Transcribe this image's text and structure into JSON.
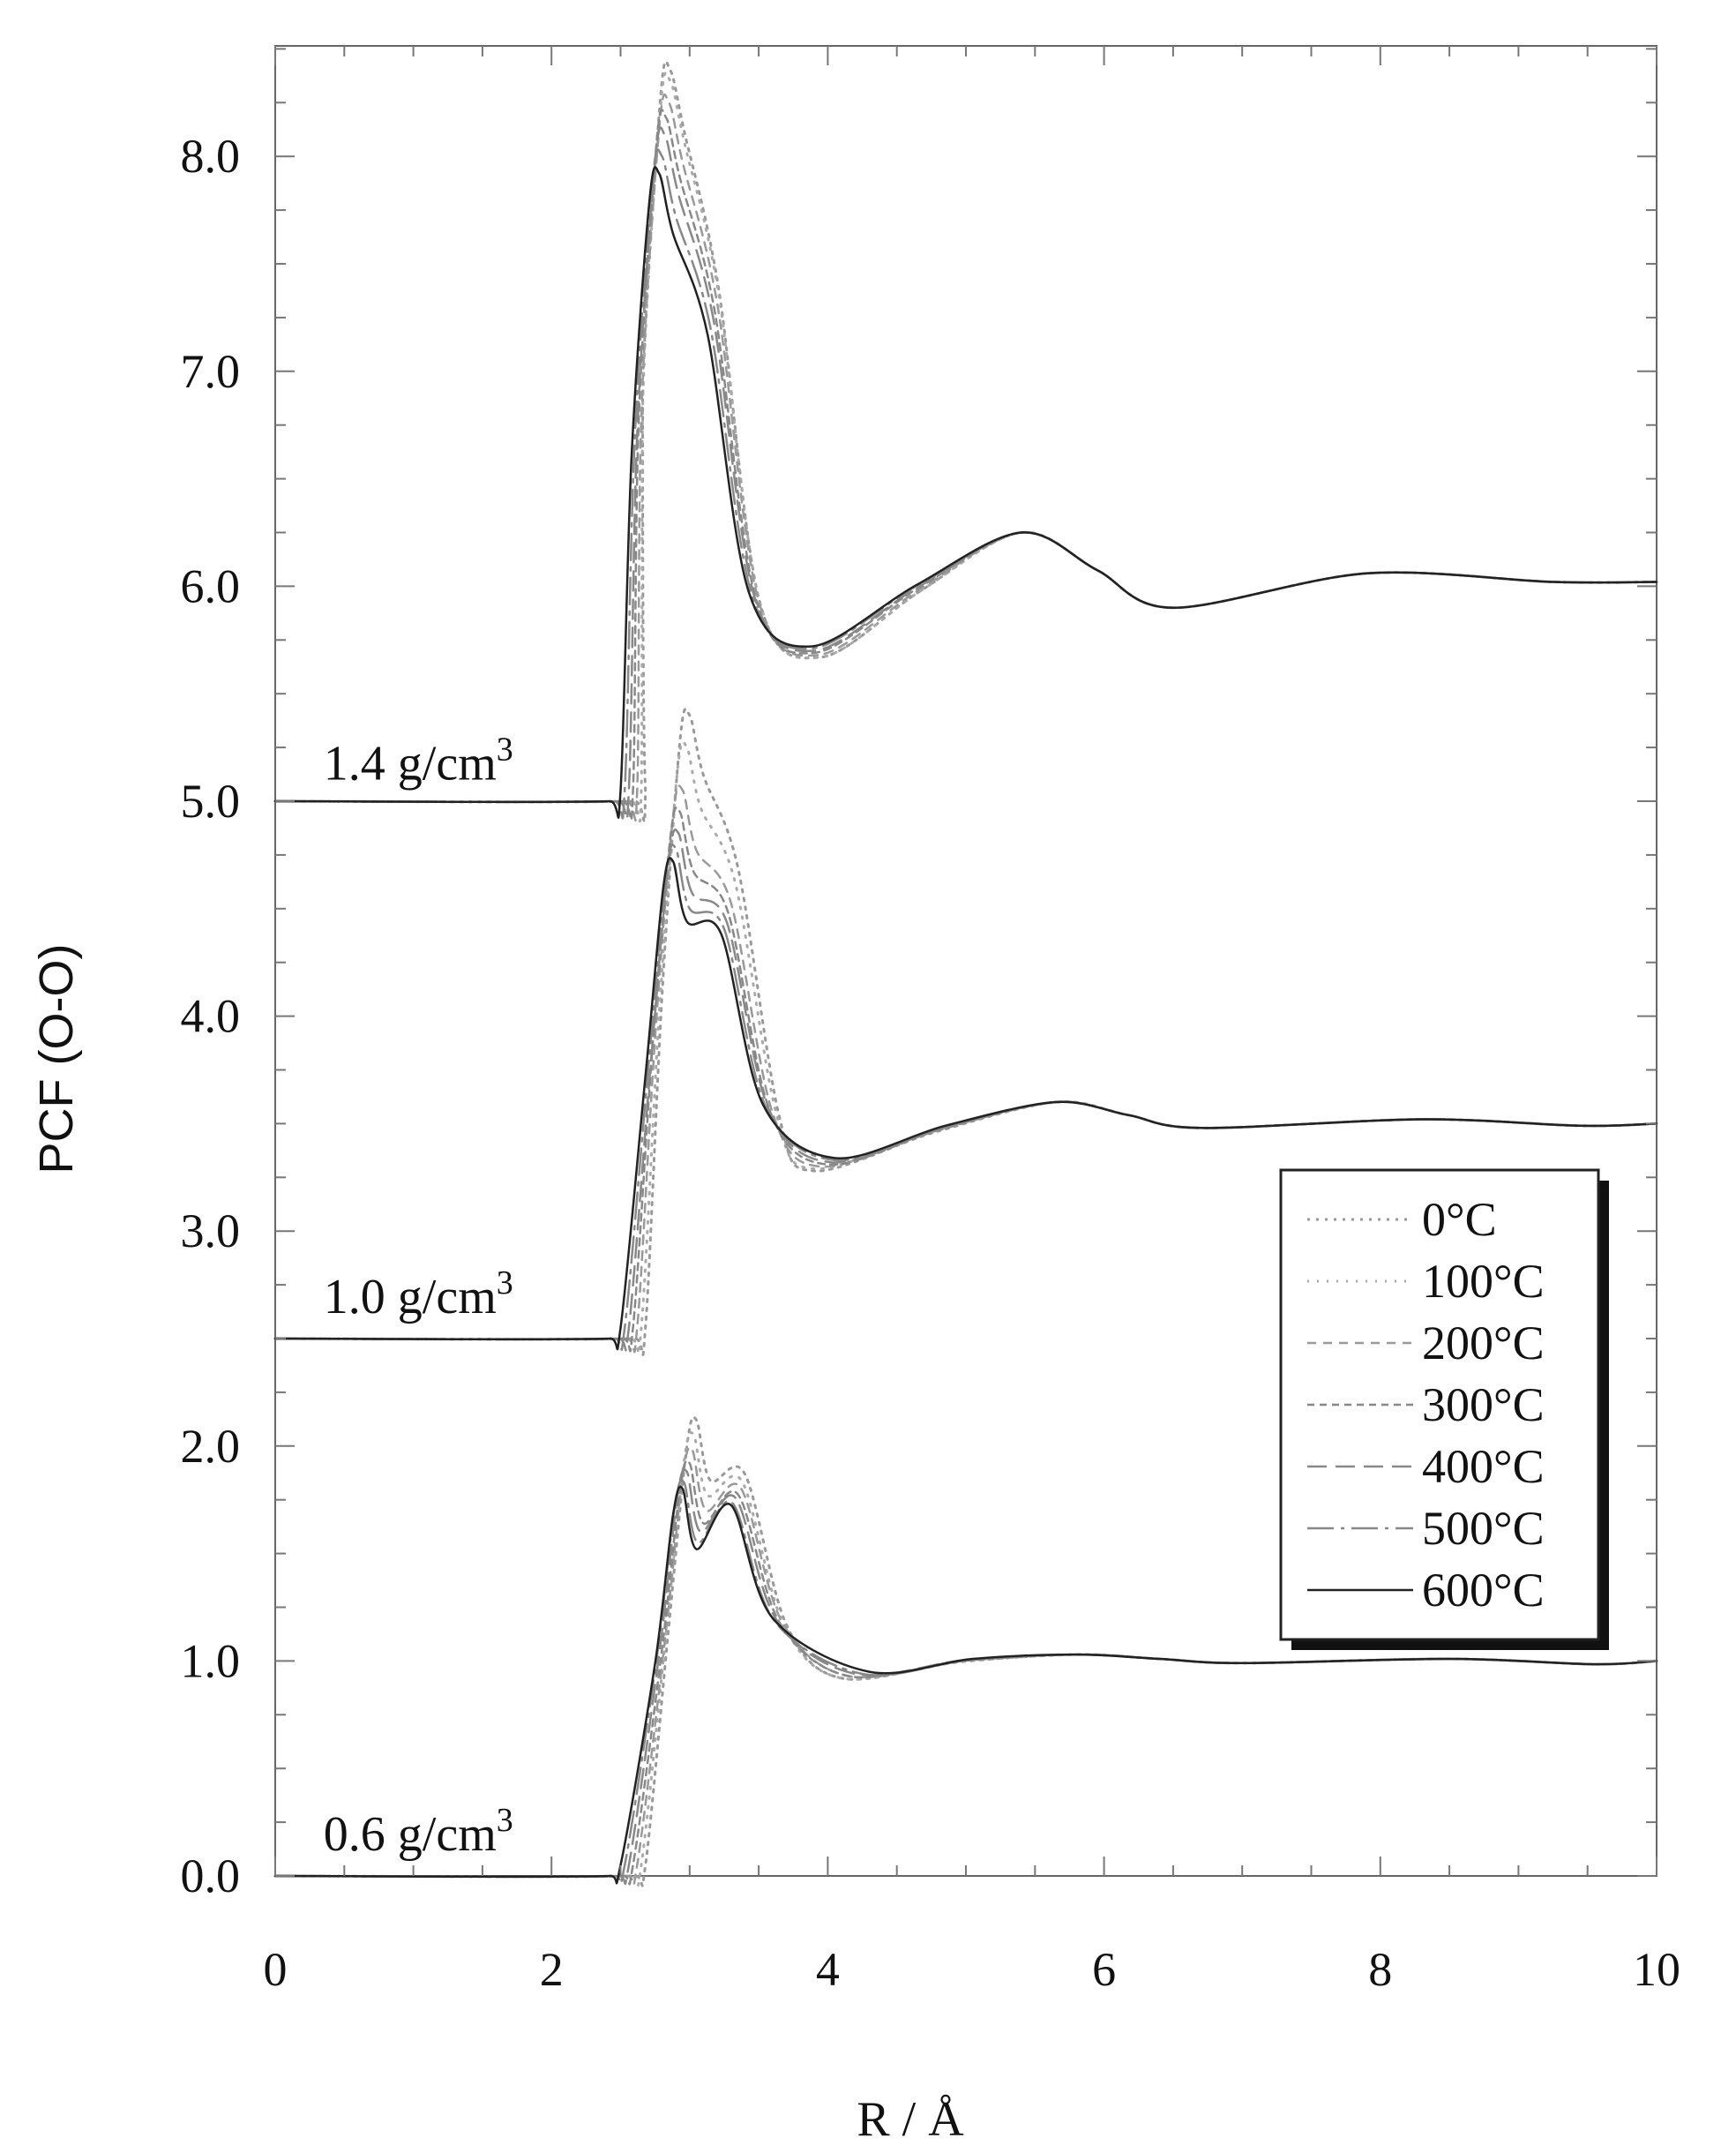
{
  "chart_data": {
    "type": "line",
    "title": "",
    "xlabel": "R / Å",
    "ylabel": "PCF (O-O)",
    "xlim": [
      0,
      10
    ],
    "ylim": [
      0,
      8.5
    ],
    "x_ticks": [
      "0",
      "2",
      "4",
      "6",
      "8",
      "10"
    ],
    "y_ticks": [
      "0.0",
      "1.0",
      "2.0",
      "3.0",
      "4.0",
      "5.0",
      "6.0",
      "7.0",
      "8.0"
    ],
    "grid": false,
    "legend_position": "right, middle-lower",
    "legend": [
      {
        "label": "0°C",
        "style": "dotted"
      },
      {
        "label": "100°C",
        "style": "dotted"
      },
      {
        "label": "200°C",
        "style": "dashed"
      },
      {
        "label": "300°C",
        "style": "dashed"
      },
      {
        "label": "400°C",
        "style": "long-dash"
      },
      {
        "label": "500°C",
        "style": "long-dash-dot"
      },
      {
        "label": "600°C",
        "style": "solid"
      }
    ],
    "groups": [
      {
        "label_main": "1.4 g/cm",
        "label_sup": "3",
        "offset": 5.0,
        "baseline_y": 5.0,
        "label_anchor": {
          "x": 0.35,
          "y": 5.1
        },
        "peak1_x": [
          2.86,
          2.86,
          2.85,
          2.83,
          2.82,
          2.8,
          2.78
        ],
        "peak1_y": [
          8.4,
          8.35,
          8.25,
          8.18,
          8.1,
          8.0,
          7.92
        ],
        "min1_x": [
          3.95,
          3.95,
          3.93,
          3.9,
          3.9,
          3.88,
          3.88
        ],
        "min1_y": [
          5.67,
          5.67,
          5.68,
          5.69,
          5.7,
          5.71,
          5.72
        ],
        "peak2_x": 5.4,
        "peak2_y": 6.25,
        "min2_x": 6.5,
        "min2_y": 5.9,
        "peak3_x": 7.9,
        "peak3_y": 6.06,
        "end_y": 6.02
      },
      {
        "label_main": "1.0 g/cm",
        "label_sup": "3",
        "offset": 2.5,
        "baseline_y": 2.5,
        "label_anchor": {
          "x": 0.35,
          "y": 2.62
        },
        "peak1_x": [
          3.0,
          2.98,
          2.95,
          2.93,
          2.92,
          2.9,
          2.88
        ],
        "peak1_y": [
          5.4,
          5.25,
          5.05,
          4.95,
          4.85,
          4.78,
          4.72
        ],
        "min1_x": [
          3.9,
          3.9,
          3.95,
          4.0,
          4.02,
          4.05,
          4.05
        ],
        "min1_y": [
          3.28,
          3.29,
          3.3,
          3.31,
          3.32,
          3.33,
          3.34
        ],
        "peak2_x": 5.65,
        "peak2_y": 3.6,
        "min2_x": 6.7,
        "min2_y": 3.48,
        "peak3_x": 8.3,
        "peak3_y": 3.52,
        "end_y": 3.5
      },
      {
        "label_main": "0.6 g/cm",
        "label_sup": "3",
        "offset": 0.0,
        "baseline_y": 0.0,
        "label_anchor": {
          "x": 0.35,
          "y": 0.12
        },
        "peak1_x": [
          3.05,
          3.03,
          3.02,
          3.0,
          2.98,
          2.96,
          2.95
        ],
        "peak1_y": [
          2.12,
          2.05,
          1.98,
          1.92,
          1.88,
          1.83,
          1.8
        ],
        "min1_x": [
          4.1,
          4.1,
          4.15,
          4.15,
          4.2,
          4.25,
          4.3
        ],
        "min1_y": [
          0.92,
          0.92,
          0.93,
          0.93,
          0.94,
          0.94,
          0.95
        ],
        "peak2_x": 5.8,
        "peak2_y": 1.03,
        "min2_x": 7.0,
        "min2_y": 0.99,
        "peak3_x": 8.5,
        "peak3_y": 1.01,
        "end_y": 1.0
      }
    ]
  }
}
